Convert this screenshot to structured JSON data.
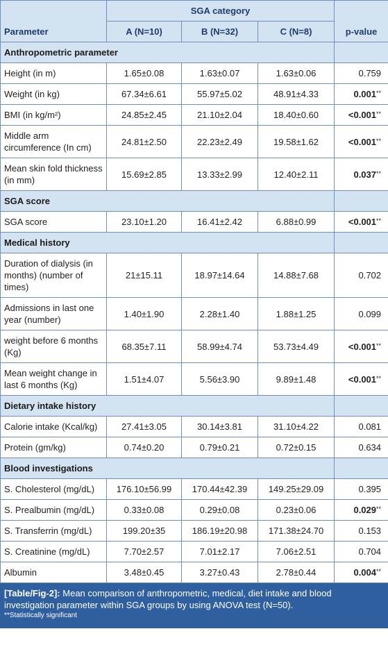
{
  "table": {
    "header": {
      "group": "SGA category",
      "columns": [
        "Parameter",
        "A (N=10)",
        "B (N=32)",
        "C (N=8)",
        "p-value"
      ]
    },
    "sections": [
      {
        "title": "Anthropometric parameter",
        "rows": [
          {
            "cells": [
              "Height (in m)",
              "1.65±0.08",
              "1.63±0.07",
              "1.63±0.06",
              "0.759"
            ]
          },
          {
            "cells": [
              "Weight (in kg)",
              "67.34±6.61",
              "55.97±5.02",
              "48.91±4.33",
              "0.001"
            ],
            "sig": "**"
          },
          {
            "cells": [
              "BMI (in kg/m²)",
              "24.85±2.45",
              "21.10±2.04",
              "18.40±0.60",
              "<0.001"
            ],
            "sig": "**"
          },
          {
            "cells": [
              "Middle arm circumference (In cm)",
              "24.81±2.50",
              "22.23±2.49",
              "19.58±1.62",
              "<0.001"
            ],
            "sig": "**"
          },
          {
            "cells": [
              "Mean skin fold thickness (in mm)",
              "15.69±2.85",
              "13.33±2.99",
              "12.40±2.11",
              "0.037"
            ],
            "sig": "**"
          }
        ]
      },
      {
        "title": "SGA score",
        "rows": [
          {
            "cells": [
              "SGA score",
              "23.10±1.20",
              "16.41±2.42",
              "6.88±0.99",
              "<0.001"
            ],
            "sig": "**"
          }
        ]
      },
      {
        "title": "Medical history",
        "rows": [
          {
            "cells": [
              "Duration of dialysis (in months) (number of times)",
              "21±15.11",
              "18.97±14.64",
              "14.88±7.68",
              "0.702"
            ]
          },
          {
            "cells": [
              "Admissions in last one year (number)",
              "1.40±1.90",
              "2.28±1.40",
              "1.88±1.25",
              "0.099"
            ]
          },
          {
            "cells": [
              "weight before 6 months (Kg)",
              "68.35±7.11",
              "58.99±4.74",
              "53.73±4.49",
              "<0.001"
            ],
            "sig": "**"
          },
          {
            "cells": [
              "Mean weight change in last 6 months (Kg)",
              "1.51±4.07",
              "5.56±3.90",
              "9.89±1.48",
              "<0.001"
            ],
            "sig": "**"
          }
        ]
      },
      {
        "title": "Dietary intake history",
        "rows": [
          {
            "cells": [
              "Calorie intake (Kcal/kg)",
              "27.41±3.05",
              "30.14±3.81",
              "31.10±4.22",
              "0.081"
            ]
          },
          {
            "cells": [
              "Protein (gm/kg)",
              "0.74±0.20",
              "0.79±0.21",
              "0.72±0.15",
              "0.634"
            ]
          }
        ]
      },
      {
        "title": "Blood investigations",
        "rows": [
          {
            "cells": [
              "S. Cholesterol (mg/dL)",
              "176.10±56.99",
              "170.44±42.39",
              "149.25±29.09",
              "0.395"
            ]
          },
          {
            "cells": [
              "S. Prealbumin (mg/dL)",
              "0.33±0.08",
              "0.29±0.08",
              "0.23±0.06",
              "0.029"
            ],
            "sig": "**"
          },
          {
            "cells": [
              "S. Transferrin (mg/dL)",
              "199.20±35",
              "186.19±20.98",
              "171.38±24.70",
              "0.153"
            ]
          },
          {
            "cells": [
              "S. Creatinine (mg/dL)",
              "7.70±2.57",
              "7.01±2.17",
              "7.06±2.51",
              "0.704"
            ]
          },
          {
            "cells": [
              "Albumin",
              "3.48±0.45",
              "3.27±0.43",
              "2.78±0.44",
              "0.004"
            ],
            "sig": "**"
          }
        ]
      }
    ]
  },
  "caption": {
    "label": "[Table/Fig-2]:",
    "text": "Mean comparison of anthropometric, medical, diet intake and blood investigation parameter within SGA groups by using ANOVA test (N=50).",
    "note": "**Statistically significant"
  }
}
